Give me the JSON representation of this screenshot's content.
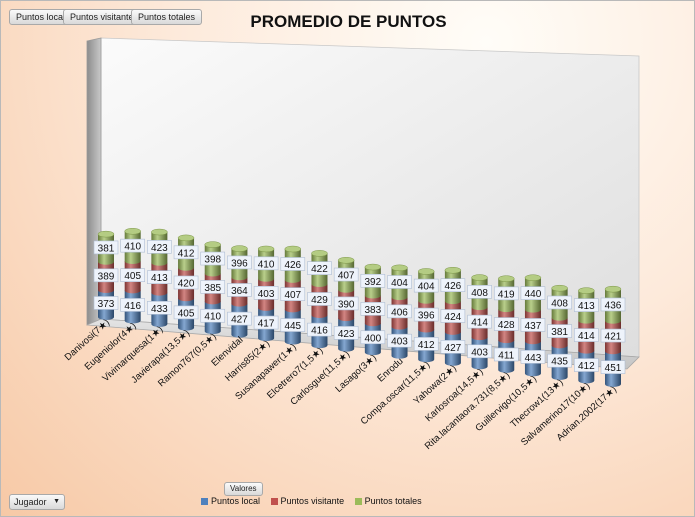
{
  "page_filters": [
    "Puntos local",
    "Puntos visitante",
    "Puntos totales"
  ],
  "row_field": "Jugador",
  "values_field": "Valores",
  "chart_data": {
    "type": "bar",
    "stacked": true,
    "style": "3d-cylinder",
    "title": "PROMEDIO DE PUNTOS",
    "categories": [
      "Danivosi(7★)",
      "Eugeniolor(4★)",
      "Vivimarquesa(1★)",
      "Javierapa(13,5★)",
      "Ramon767(0,5★)",
      "Elenvidal",
      "Harris85(2★)",
      "Susanapawer(1★)",
      "Elcetrero7(1,5★)",
      "Carlosgue(11,5★)",
      "Lasago(3★)",
      "Enrodu",
      "Compa.oscar(11,5★)",
      "Yahowa(2★)",
      "Karlosroa(14,5★)",
      "Rita.lacantaora.731(8,5★)",
      "Guillervigo(10,5★)",
      "Thecrow1(13★)",
      "Salvamerino17(10★)",
      "Adrian.2002(17★)"
    ],
    "series": [
      {
        "name": "Puntos local",
        "color": "#4f81bd",
        "values": [
          373,
          416,
          433,
          405,
          410,
          427,
          417,
          445,
          416,
          423,
          400,
          403,
          412,
          427,
          403,
          411,
          443,
          435,
          412,
          451
        ]
      },
      {
        "name": "Puntos visitante",
        "color": "#c0504d",
        "values": [
          389,
          405,
          413,
          420,
          385,
          364,
          403,
          407,
          429,
          390,
          383,
          406,
          396,
          424,
          414,
          428,
          437,
          381,
          414,
          421
        ]
      },
      {
        "name": "Puntos totales",
        "color": "#9bbb59",
        "values": [
          381,
          410,
          423,
          412,
          398,
          396,
          410,
          426,
          422,
          407,
          392,
          404,
          404,
          426,
          408,
          419,
          440,
          408,
          413,
          436
        ]
      }
    ],
    "legend_position": "bottom",
    "grid": false
  }
}
